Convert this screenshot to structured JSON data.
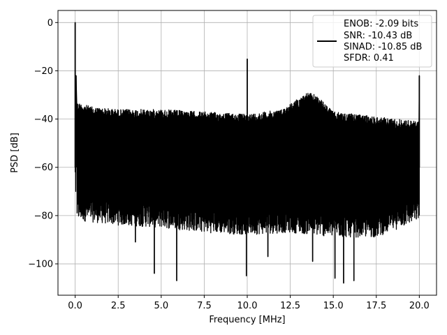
{
  "chart_data": {
    "type": "line",
    "title": "",
    "xlabel": "Frequency [MHz]",
    "ylabel": "PSD [dB]",
    "xlim": [
      -1.0,
      21.0
    ],
    "ylim": [
      -113,
      5
    ],
    "xticks": [
      0.0,
      2.5,
      5.0,
      7.5,
      10.0,
      12.5,
      15.0,
      17.5,
      20.0
    ],
    "xtick_labels": [
      "0.0",
      "2.5",
      "5.0",
      "7.5",
      "10.0",
      "12.5",
      "15.0",
      "17.5",
      "20.0"
    ],
    "yticks": [
      0,
      -20,
      -40,
      -60,
      -80,
      -100
    ],
    "ytick_labels": [
      "0",
      "−20",
      "−40",
      "−60",
      "−80",
      "−100"
    ],
    "grid": true,
    "legend_position": "top-right",
    "series": [
      {
        "color": "#000000",
        "legend_lines": [
          "ENOB: -2.09 bits",
          "SNR: -10.43 dB",
          "SINAD: -10.85 dB",
          "SFDR: 0.41"
        ],
        "x_range": [
          0.0,
          20.0
        ],
        "peaks": [
          {
            "x": 0.0,
            "y": 0
          },
          {
            "x": 0.05,
            "y": -22
          },
          {
            "x": 10.0,
            "y": -15
          },
          {
            "x": 20.0,
            "y": -22
          }
        ],
        "upper_envelope": [
          {
            "x": 0.1,
            "y": -33
          },
          {
            "x": 1.0,
            "y": -35
          },
          {
            "x": 2.5,
            "y": -36
          },
          {
            "x": 5.0,
            "y": -36
          },
          {
            "x": 7.5,
            "y": -37
          },
          {
            "x": 10.0,
            "y": -38
          },
          {
            "x": 12.0,
            "y": -36
          },
          {
            "x": 13.5,
            "y": -29
          },
          {
            "x": 14.0,
            "y": -30
          },
          {
            "x": 15.0,
            "y": -37
          },
          {
            "x": 17.5,
            "y": -39
          },
          {
            "x": 20.0,
            "y": -41
          }
        ],
        "lower_envelope": [
          {
            "x": 0.1,
            "y": -80
          },
          {
            "x": 2.5,
            "y": -82
          },
          {
            "x": 5.0,
            "y": -83
          },
          {
            "x": 7.5,
            "y": -85
          },
          {
            "x": 10.0,
            "y": -86
          },
          {
            "x": 12.5,
            "y": -85
          },
          {
            "x": 15.0,
            "y": -87
          },
          {
            "x": 17.5,
            "y": -87
          },
          {
            "x": 20.0,
            "y": -80
          }
        ],
        "deep_nulls": [
          {
            "x": 4.6,
            "y": -104
          },
          {
            "x": 5.9,
            "y": -107
          },
          {
            "x": 9.95,
            "y": -105
          },
          {
            "x": 15.1,
            "y": -106
          },
          {
            "x": 15.6,
            "y": -108
          },
          {
            "x": 16.2,
            "y": -107
          },
          {
            "x": 13.8,
            "y": -99
          },
          {
            "x": 3.5,
            "y": -91
          },
          {
            "x": 11.2,
            "y": -97
          }
        ]
      }
    ]
  }
}
